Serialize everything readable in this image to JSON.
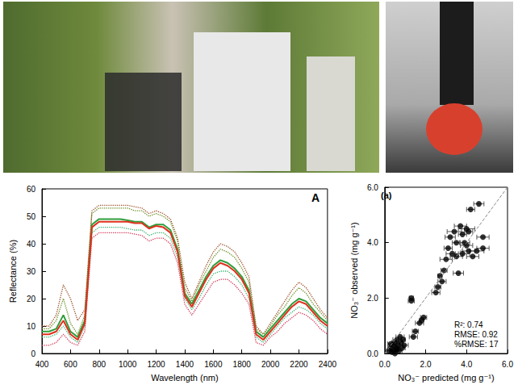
{
  "chart_data": [
    {
      "type": "line",
      "x_label": "Wavelength (nm)",
      "y_label": "Reflectance (%)",
      "annotations": [
        "A"
      ],
      "x": [
        400,
        450,
        500,
        550,
        600,
        650,
        700,
        750,
        800,
        850,
        900,
        950,
        1000,
        1050,
        1100,
        1150,
        1200,
        1250,
        1300,
        1350,
        1400,
        1450,
        1500,
        1550,
        1600,
        1650,
        1700,
        1750,
        1800,
        1850,
        1900,
        1950,
        2000,
        2050,
        2100,
        2150,
        2200,
        2250,
        2300,
        2350,
        2400
      ],
      "series": [
        {
          "color": "#a0522d",
          "line_style": "dotted",
          "values": [
            10,
            10,
            14,
            25,
            20,
            12,
            16,
            52,
            54,
            54,
            54,
            54,
            54,
            53.5,
            53,
            51,
            52,
            51,
            49,
            42,
            26,
            20,
            26,
            32,
            37,
            40,
            39,
            37,
            33,
            28,
            10,
            7,
            11,
            15,
            19,
            23,
            26,
            24,
            20,
            16,
            13
          ]
        },
        {
          "color": "#6b8e23",
          "line_style": "dotted",
          "values": [
            9,
            9,
            12,
            20,
            11,
            7,
            14,
            51,
            53,
            53,
            53,
            53,
            53,
            52,
            52,
            50,
            51,
            50,
            48,
            41,
            24,
            19,
            25,
            30,
            35,
            38,
            37,
            35,
            31,
            26,
            9,
            7,
            10,
            14,
            17,
            21,
            24,
            22,
            18,
            15,
            12
          ]
        },
        {
          "color": "#3cb371",
          "line_style": "dotted",
          "values": [
            6,
            6,
            7,
            10,
            6,
            4,
            10,
            44,
            46,
            46,
            46,
            46,
            45.5,
            45,
            45,
            43,
            44,
            44,
            42,
            35,
            20,
            16,
            20,
            25,
            29,
            30,
            30,
            28,
            25,
            20,
            6,
            4,
            7,
            10,
            13,
            15,
            17,
            16,
            14,
            11,
            9
          ]
        },
        {
          "color": "#d2385a",
          "line_style": "dotted",
          "values": [
            3,
            3,
            4,
            7,
            4,
            3,
            8,
            42,
            44,
            44,
            44,
            44,
            44,
            43.5,
            43,
            41,
            42,
            42,
            40,
            33,
            18,
            14,
            18,
            22,
            26,
            27,
            27,
            25,
            22,
            18,
            4,
            3,
            6,
            8,
            11,
            13,
            15,
            14,
            12,
            9,
            7
          ]
        },
        {
          "color": "#2e9e3a",
          "line_style": "solid",
          "values": [
            8,
            8,
            9,
            14,
            8,
            6,
            12,
            47,
            49,
            49,
            49,
            49,
            48.5,
            48,
            48,
            46,
            47,
            47,
            45,
            38,
            22,
            18,
            23,
            28,
            32,
            34,
            33,
            31,
            28,
            23,
            8,
            6,
            9,
            12,
            15,
            18,
            20,
            19,
            16,
            13,
            11
          ]
        },
        {
          "color": "#e0301e",
          "line_style": "solid",
          "values": [
            7,
            7,
            8,
            12,
            7,
            5,
            11,
            46,
            48,
            48,
            48,
            48,
            48,
            47.5,
            47.5,
            45.5,
            46.5,
            46,
            44,
            37,
            21,
            17,
            22,
            27,
            31,
            33,
            32,
            30,
            27,
            22,
            7,
            5,
            8,
            11,
            14,
            17,
            19,
            18,
            15,
            12,
            10
          ]
        }
      ],
      "xlim": [
        400,
        2400
      ],
      "xticks": [
        400,
        600,
        800,
        1000,
        1200,
        1400,
        1600,
        1800,
        2000,
        2200,
        2400
      ],
      "ylim": [
        0,
        60
      ],
      "yticks": [
        0,
        10,
        20,
        30,
        40,
        50,
        60
      ],
      "grid": false
    },
    {
      "type": "scatter",
      "x_label": "NO₃⁻ predicted (mg g⁻¹)",
      "y_label": "NO₃⁻ observed (mg g⁻¹)",
      "annotations": [
        "(a)",
        "R²: 0.74",
        "RMSE: 0.92",
        "%RMSE: 17"
      ],
      "color": "#000000",
      "marker": "circle",
      "x": [
        0.2,
        0.3,
        0.35,
        0.4,
        0.45,
        0.5,
        0.55,
        0.6,
        0.65,
        0.7,
        0.75,
        0.8,
        0.85,
        0.9,
        0.5,
        0.3,
        0.95,
        0.6,
        1.3,
        1.3,
        1.4,
        1.5,
        1.7,
        1.8,
        1.9,
        2.5,
        2.6,
        2.7,
        2.8,
        2.9,
        3.0,
        3.1,
        3.2,
        3.3,
        3.4,
        3.5,
        3.5,
        3.6,
        3.7,
        3.8,
        3.8,
        3.9,
        4.0,
        4.0,
        4.1,
        4.1,
        4.2,
        4.3,
        4.5,
        4.6,
        4.8,
        4.8
      ],
      "values": [
        0.1,
        0.2,
        0.05,
        0.3,
        0.1,
        0.4,
        0.2,
        0.5,
        0.3,
        0.1,
        0.6,
        0.4,
        0.2,
        0.5,
        0.0,
        0.35,
        0.3,
        0.15,
        1.9,
        2.0,
        0.6,
        0.8,
        1.1,
        1.2,
        1.3,
        2.2,
        2.4,
        2.8,
        2.6,
        3.0,
        3.4,
        3.8,
        4.2,
        3.6,
        4.4,
        4.0,
        3.5,
        2.9,
        4.6,
        3.6,
        4.3,
        4.0,
        3.9,
        4.5,
        4.4,
        3.7,
        5.2,
        3.5,
        3.7,
        5.4,
        4.2,
        3.8
      ],
      "x_error": [
        0.1,
        0.15,
        0.1,
        0.2,
        0.1,
        0.15,
        0.1,
        0.2,
        0.1,
        0.15,
        0.2,
        0.1,
        0.15,
        0.1,
        0.1,
        0.15,
        0.2,
        0.1,
        0.15,
        0.1,
        0.2,
        0.15,
        0.2,
        0.1,
        0.15,
        0.2,
        0.15,
        0.1,
        0.2,
        0.15,
        0.3,
        0.2,
        0.25,
        0.3,
        0.35,
        0.2,
        0.3,
        0.25,
        0.3,
        0.35,
        0.2,
        0.25,
        0.3,
        0.4,
        0.2,
        0.3,
        0.2,
        0.3,
        0.35,
        0.25,
        0.3,
        0.3
      ],
      "xlim": [
        0,
        6
      ],
      "xticks": [
        {
          "value": 0,
          "label": "0.0"
        },
        {
          "value": 2,
          "label": "2.0"
        },
        {
          "value": 4,
          "label": "4.0"
        },
        {
          "value": 6,
          "label": "6.0"
        }
      ],
      "ylim": [
        0,
        6
      ],
      "yticks": [
        {
          "value": 0,
          "label": "0.0"
        },
        {
          "value": 2,
          "label": "2.0"
        },
        {
          "value": 4,
          "label": "4.0"
        },
        {
          "value": 6,
          "label": "6.0"
        }
      ],
      "grid": false
    }
  ]
}
